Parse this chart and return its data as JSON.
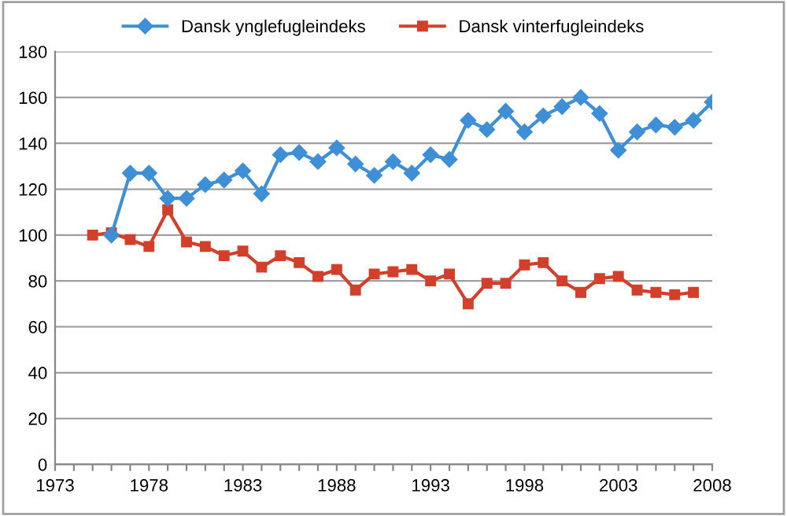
{
  "chart_data": {
    "type": "line",
    "series": [
      {
        "name": "Dansk ynglefugleindeks",
        "color": "#3e8fd6",
        "marker": "diamond",
        "x": [
          1976,
          1977,
          1978,
          1979,
          1980,
          1981,
          1982,
          1983,
          1984,
          1985,
          1986,
          1987,
          1988,
          1989,
          1990,
          1991,
          1992,
          1993,
          1994,
          1995,
          1996,
          1997,
          1998,
          1999,
          2000,
          2001,
          2002,
          2003,
          2004,
          2005,
          2006,
          2007,
          2008
        ],
        "values": [
          100,
          127,
          127,
          116,
          116,
          122,
          124,
          128,
          118,
          135,
          136,
          132,
          138,
          131,
          126,
          132,
          127,
          135,
          133,
          150,
          146,
          154,
          145,
          152,
          156,
          160,
          153,
          137,
          145,
          148,
          147,
          150,
          158
        ]
      },
      {
        "name": "Dansk vinterfugleindeks",
        "color": "#d23f2a",
        "marker": "square",
        "x": [
          1975,
          1976,
          1977,
          1978,
          1979,
          1980,
          1981,
          1982,
          1983,
          1984,
          1985,
          1986,
          1987,
          1988,
          1989,
          1990,
          1991,
          1992,
          1993,
          1994,
          1995,
          1996,
          1997,
          1998,
          1999,
          2000,
          2001,
          2002,
          2003,
          2004,
          2005,
          2006,
          2007
        ],
        "values": [
          100,
          101,
          98,
          95,
          111,
          97,
          95,
          91,
          93,
          86,
          91,
          88,
          82,
          85,
          76,
          83,
          84,
          85,
          80,
          83,
          70,
          79,
          79,
          87,
          88,
          80,
          75,
          81,
          82,
          76,
          75,
          74,
          75
        ]
      }
    ],
    "xlim": [
      1973,
      2008
    ],
    "xticks": [
      1973,
      {
        "value": 1974,
        "label": null
      },
      {
        "value": 1975,
        "label": null
      },
      {
        "value": 1976,
        "label": null
      },
      {
        "value": 1977,
        "label": null
      },
      1978,
      {
        "value": 1979,
        "label": null
      },
      {
        "value": 1980,
        "label": null
      },
      {
        "value": 1981,
        "label": null
      },
      {
        "value": 1982,
        "label": null
      },
      1983,
      {
        "value": 1984,
        "label": null
      },
      {
        "value": 1985,
        "label": null
      },
      {
        "value": 1986,
        "label": null
      },
      {
        "value": 1987,
        "label": null
      },
      1988,
      {
        "value": 1989,
        "label": null
      },
      {
        "value": 1990,
        "label": null
      },
      {
        "value": 1991,
        "label": null
      },
      {
        "value": 1992,
        "label": null
      },
      1993,
      {
        "value": 1994,
        "label": null
      },
      {
        "value": 1995,
        "label": null
      },
      {
        "value": 1996,
        "label": null
      },
      {
        "value": 1997,
        "label": null
      },
      1998,
      {
        "value": 1999,
        "label": null
      },
      {
        "value": 2000,
        "label": null
      },
      {
        "value": 2001,
        "label": null
      },
      {
        "value": 2002,
        "label": null
      },
      2003,
      {
        "value": 2004,
        "label": null
      },
      {
        "value": 2005,
        "label": null
      },
      {
        "value": 2006,
        "label": null
      },
      {
        "value": 2007,
        "label": null
      },
      2008
    ],
    "ylim": [
      0,
      180
    ],
    "yticks": [
      0,
      20,
      40,
      60,
      80,
      100,
      120,
      140,
      160,
      180
    ],
    "grid": "y",
    "legend": "top",
    "line_style": "solid"
  }
}
